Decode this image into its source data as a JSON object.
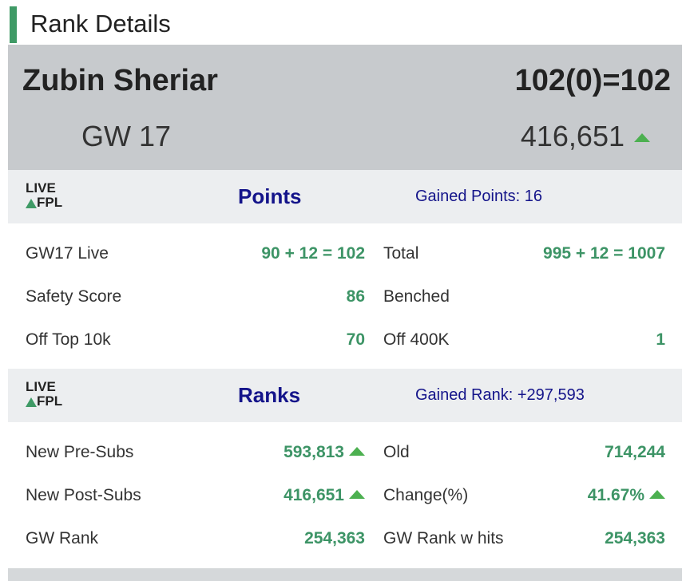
{
  "header": {
    "title": "Rank Details"
  },
  "summary": {
    "manager": "Zubin Sheriar",
    "score": "102(0)=102",
    "gameweek": "GW 17",
    "overall_rank": "416,651"
  },
  "sections": [
    {
      "logo": {
        "top": "LIVE",
        "bottom": "FPL"
      },
      "title": "Points",
      "gained": "Gained Points: 16",
      "rows": [
        [
          {
            "label": "GW17 Live",
            "value": "90 + 12 = 102"
          },
          {
            "label": "Total",
            "value": "995 + 12 = 1007"
          }
        ],
        [
          {
            "label": "Safety Score",
            "value": "86"
          },
          {
            "label": "Benched"
          }
        ],
        [
          {
            "label": "Off Top 10k",
            "value": "70"
          },
          {
            "label": "Off 400K",
            "value": "1"
          }
        ]
      ]
    },
    {
      "logo": {
        "top": "LIVE",
        "bottom": "FPL"
      },
      "title": "Ranks",
      "gained": "Gained Rank: +297,593",
      "rows": [
        [
          {
            "label": "New Pre-Subs",
            "value": "593,813"
          },
          {
            "label": "Old",
            "value": "714,244"
          }
        ],
        [
          {
            "label": "New Post-Subs",
            "value": "416,651"
          },
          {
            "label": "Change(%)",
            "value": "41.67%"
          }
        ],
        [
          {
            "label": "GW Rank",
            "value": "254,363"
          },
          {
            "label": "GW Rank w hits",
            "value": "254,363"
          }
        ]
      ]
    }
  ]
}
